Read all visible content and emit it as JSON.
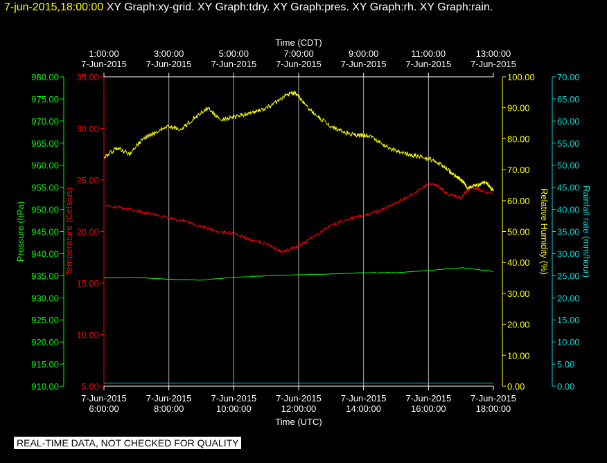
{
  "header": {
    "datetime": "7-jun-2015,18:00:00",
    "titles": "XY Graph:xy-grid.  XY Graph:tdry.  XY Graph:pres.  XY Graph:rh.  XY Graph:rain."
  },
  "footer": {
    "disclaimer": "REAL-TIME DATA, NOT CHECKED FOR QUALITY"
  },
  "colors": {
    "background": "#000000",
    "grid": "#ffffff",
    "pressure": "#00ff00",
    "temperature": "#ff0000",
    "humidity": "#ffff00",
    "rain": "#00dddd"
  },
  "chart_data": {
    "type": "line",
    "x_bottom": {
      "label": "Time (UTC)",
      "ticks": [
        {
          "date": "7-Jun-2015",
          "time": "6:00:00"
        },
        {
          "date": "7-Jun-2015",
          "time": "8:00:00"
        },
        {
          "date": "7-Jun-2015",
          "time": "10:00:00"
        },
        {
          "date": "7-Jun-2015",
          "time": "12:00:00"
        },
        {
          "date": "7-Jun-2015",
          "time": "14:00:00"
        },
        {
          "date": "7-Jun-2015",
          "time": "16:00:00"
        },
        {
          "date": "7-Jun-2015",
          "time": "18:00:00"
        }
      ]
    },
    "x_top": {
      "label": "Time (CDT)",
      "ticks": [
        {
          "date": "7-Jun-2015",
          "time": "1:00:00"
        },
        {
          "date": "7-Jun-2015",
          "time": "3:00:00"
        },
        {
          "date": "7-Jun-2015",
          "time": "5:00:00"
        },
        {
          "date": "7-Jun-2015",
          "time": "7:00:00"
        },
        {
          "date": "7-Jun-2015",
          "time": "9:00:00"
        },
        {
          "date": "7-Jun-2015",
          "time": "11:00:00"
        },
        {
          "date": "7-Jun-2015",
          "time": "13:00:00"
        }
      ]
    },
    "xlim_utc_hours": [
      6,
      18
    ],
    "axes": {
      "pressure": {
        "label": "Pressure (hPa)",
        "ylim": [
          910,
          980
        ],
        "ticks": [
          "910.00",
          "915.00",
          "920.00",
          "925.00",
          "930.00",
          "935.00",
          "940.00",
          "945.00",
          "950.00",
          "955.00",
          "960.00",
          "965.00",
          "970.00",
          "975.00",
          "980.00"
        ]
      },
      "temperature": {
        "label": "Temperature (Celsius)",
        "ylim": [
          5,
          35
        ],
        "ticks": [
          "5.00",
          "10.00",
          "15.00",
          "20.00",
          "25.00",
          "30.00",
          "35.00"
        ]
      },
      "humidity": {
        "label": "Relative Humidity (%)",
        "ylim": [
          0,
          100
        ],
        "ticks": [
          "0.00",
          "10.00",
          "20.00",
          "30.00",
          "40.00",
          "50.00",
          "60.00",
          "70.00",
          "80.00",
          "90.00",
          "100.00"
        ]
      },
      "rain": {
        "label": "Rainfall rate (mm/hour)",
        "ylim": [
          0,
          70
        ],
        "ticks": [
          "0.00",
          "5.00",
          "10.00",
          "15.00",
          "20.00",
          "25.00",
          "30.00",
          "35.00",
          "40.00",
          "45.00",
          "50.00",
          "55.00",
          "60.00",
          "65.00",
          "70.00"
        ]
      }
    },
    "series": [
      {
        "axis": "temperature",
        "x": [
          6.0,
          6.5,
          7.0,
          7.5,
          8.0,
          8.5,
          9.0,
          9.5,
          10.0,
          10.5,
          11.0,
          11.5,
          12.0,
          12.5,
          13.0,
          13.5,
          14.0,
          14.5,
          15.0,
          15.5,
          16.0,
          16.3,
          16.6,
          17.0,
          17.3,
          17.6,
          18.0
        ],
        "y": [
          22.5,
          22.3,
          22.0,
          21.7,
          21.3,
          21.0,
          20.5,
          20.0,
          19.8,
          19.2,
          18.8,
          18.0,
          18.6,
          19.6,
          20.6,
          21.2,
          21.6,
          22.0,
          22.8,
          23.6,
          24.6,
          24.4,
          23.6,
          23.3,
          24.3,
          24.0,
          23.6
        ]
      },
      {
        "axis": "pressure",
        "x": [
          6.0,
          7.0,
          8.0,
          9.0,
          10.0,
          11.0,
          12.0,
          13.0,
          14.0,
          15.0,
          16.0,
          17.0,
          18.0
        ],
        "y": [
          934.5,
          934.6,
          934.2,
          934.0,
          934.6,
          935.0,
          935.2,
          935.4,
          935.7,
          935.7,
          936.2,
          936.8,
          936.0
        ]
      },
      {
        "axis": "humidity",
        "x": [
          6.0,
          6.4,
          6.8,
          7.2,
          7.6,
          8.0,
          8.4,
          8.8,
          9.2,
          9.6,
          10.0,
          10.4,
          10.8,
          11.2,
          11.6,
          11.9,
          12.2,
          12.6,
          13.0,
          13.4,
          13.8,
          14.2,
          14.6,
          15.0,
          15.4,
          15.8,
          16.2,
          16.6,
          16.8,
          17.0,
          17.2,
          17.5,
          17.8,
          18.0
        ],
        "y": [
          74,
          77,
          75,
          80,
          82,
          84,
          83,
          87,
          90,
          86,
          87,
          88,
          89,
          91,
          94,
          95,
          91,
          87,
          84,
          82,
          81,
          81,
          78,
          76,
          75,
          74,
          73,
          70,
          68,
          67,
          64,
          65,
          66,
          63
        ]
      },
      {
        "axis": "rain",
        "x": [
          6.0,
          18.0
        ],
        "y": [
          0.7,
          0.7
        ]
      }
    ]
  }
}
